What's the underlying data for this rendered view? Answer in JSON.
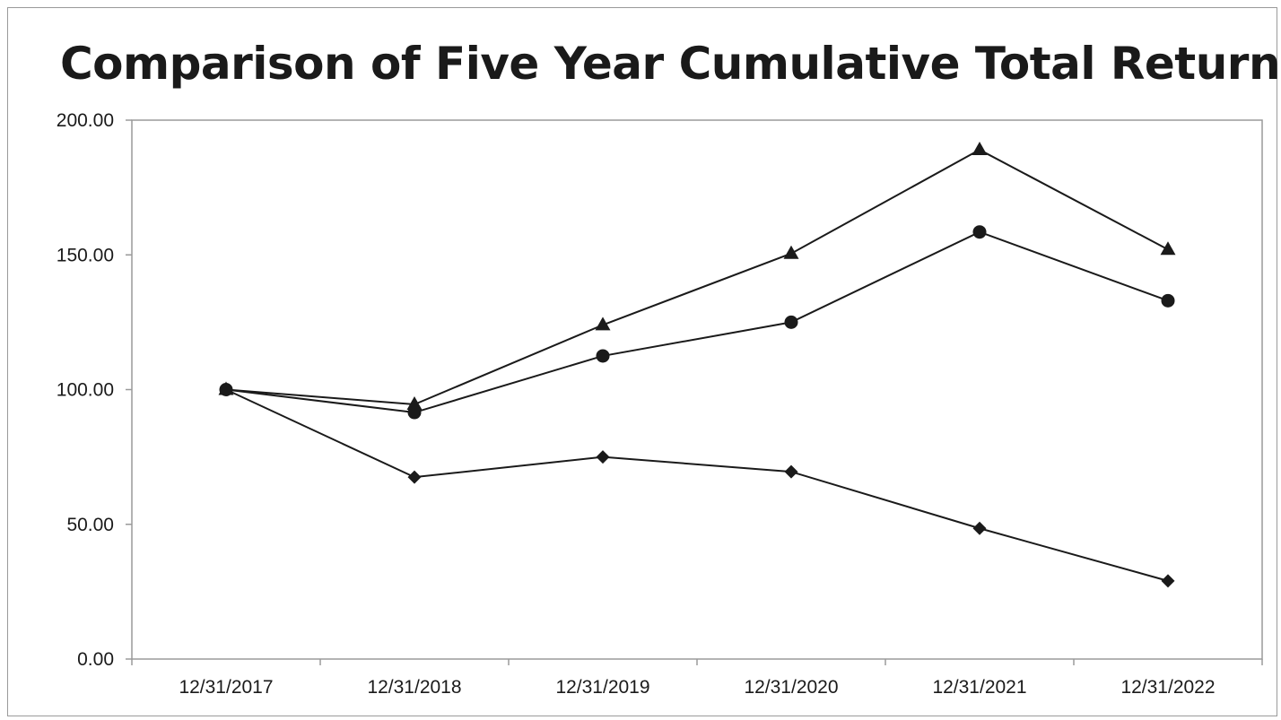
{
  "chart_data": {
    "type": "line",
    "title": "Comparison of Five Year Cumulative Total Return",
    "xlabel": "",
    "ylabel": "",
    "categories": [
      "12/31/2017",
      "12/31/2018",
      "12/31/2019",
      "12/31/2020",
      "12/31/2021",
      "12/31/2022"
    ],
    "yticks": [
      "0.00",
      "50.00",
      "100.00",
      "150.00",
      "200.00"
    ],
    "ylim": [
      0,
      200
    ],
    "grid": false,
    "series": [
      {
        "marker": "triangle",
        "values": [
          100,
          94.5,
          124,
          150.5,
          189,
          152
        ]
      },
      {
        "marker": "circle",
        "values": [
          100,
          91.5,
          112.5,
          125,
          158.5,
          133
        ]
      },
      {
        "marker": "diamond",
        "values": [
          100,
          67.5,
          75,
          69.5,
          48.5,
          29
        ]
      }
    ],
    "line_color": "#1a1a1a",
    "axis_color": "#9a9a9a"
  }
}
